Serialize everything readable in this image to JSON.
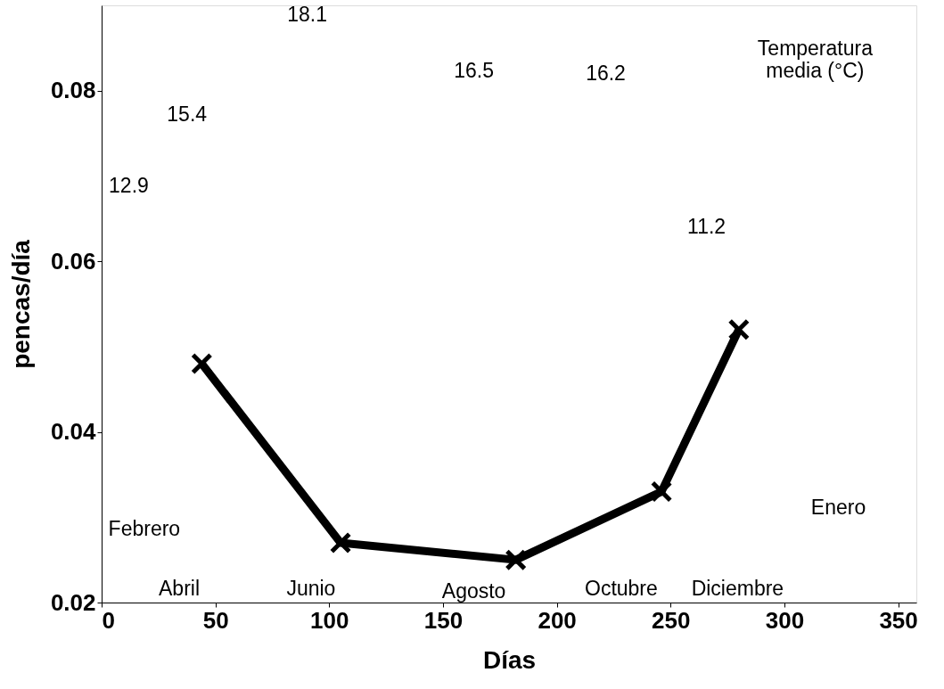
{
  "chart_data": {
    "type": "line",
    "xlabel": "Días",
    "ylabel": "pencas/día",
    "x": [
      44,
      105,
      182,
      246,
      280
    ],
    "series": [
      {
        "color": "#000000",
        "values": [
          0.048,
          0.027,
          0.025,
          0.033,
          0.052
        ]
      }
    ],
    "xlim": [
      0,
      358
    ],
    "xticks": [
      0,
      50,
      100,
      150,
      200,
      250,
      300,
      350
    ],
    "ylim": [
      0.02,
      0.09
    ],
    "yticks": [
      0.02,
      0.04,
      0.06,
      0.08
    ],
    "grid": false,
    "marker": "cross",
    "line_style": "solid",
    "annotations": [
      "12.9",
      "15.4",
      "18.1",
      "16.5",
      "16.2",
      "11.2",
      "Temperatura\nmedia (°C)",
      "Febrero",
      "Abril",
      "Junio",
      "Agosto",
      "Octubre",
      "Diciembre",
      "Enero"
    ]
  }
}
